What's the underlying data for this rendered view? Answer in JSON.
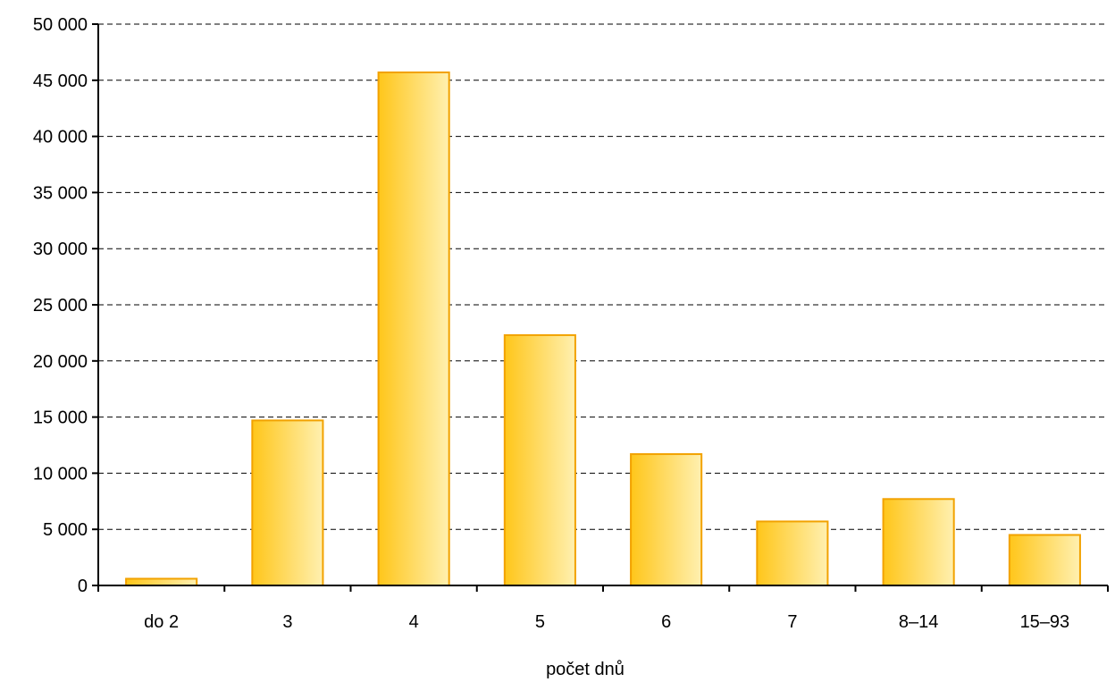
{
  "chart_data": {
    "type": "bar",
    "title": "",
    "xlabel": "počet dnů",
    "ylabel": "",
    "categories": [
      "do 2",
      "3",
      "4",
      "5",
      "6",
      "7",
      "8–14",
      "15–93"
    ],
    "values": [
      600,
      14700,
      45700,
      22300,
      11700,
      5700,
      7700,
      4500
    ],
    "ylim": [
      0,
      50000
    ],
    "yticks": [
      0,
      5000,
      10000,
      15000,
      20000,
      25000,
      30000,
      35000,
      40000,
      45000,
      50000
    ],
    "ytick_labels": [
      "0",
      "5 000",
      "10 000",
      "15 000",
      "20 000",
      "25 000",
      "30 000",
      "35 000",
      "40 000",
      "45 000",
      "50 000"
    ],
    "grid": "horizontal-dashed",
    "legend": "none",
    "colors": {
      "bar_fill_dark": "#FFC61A",
      "bar_fill_light": "#FFF0B0",
      "bar_stroke": "#F2A200",
      "axis": "#000000",
      "grid": "#000000"
    }
  }
}
